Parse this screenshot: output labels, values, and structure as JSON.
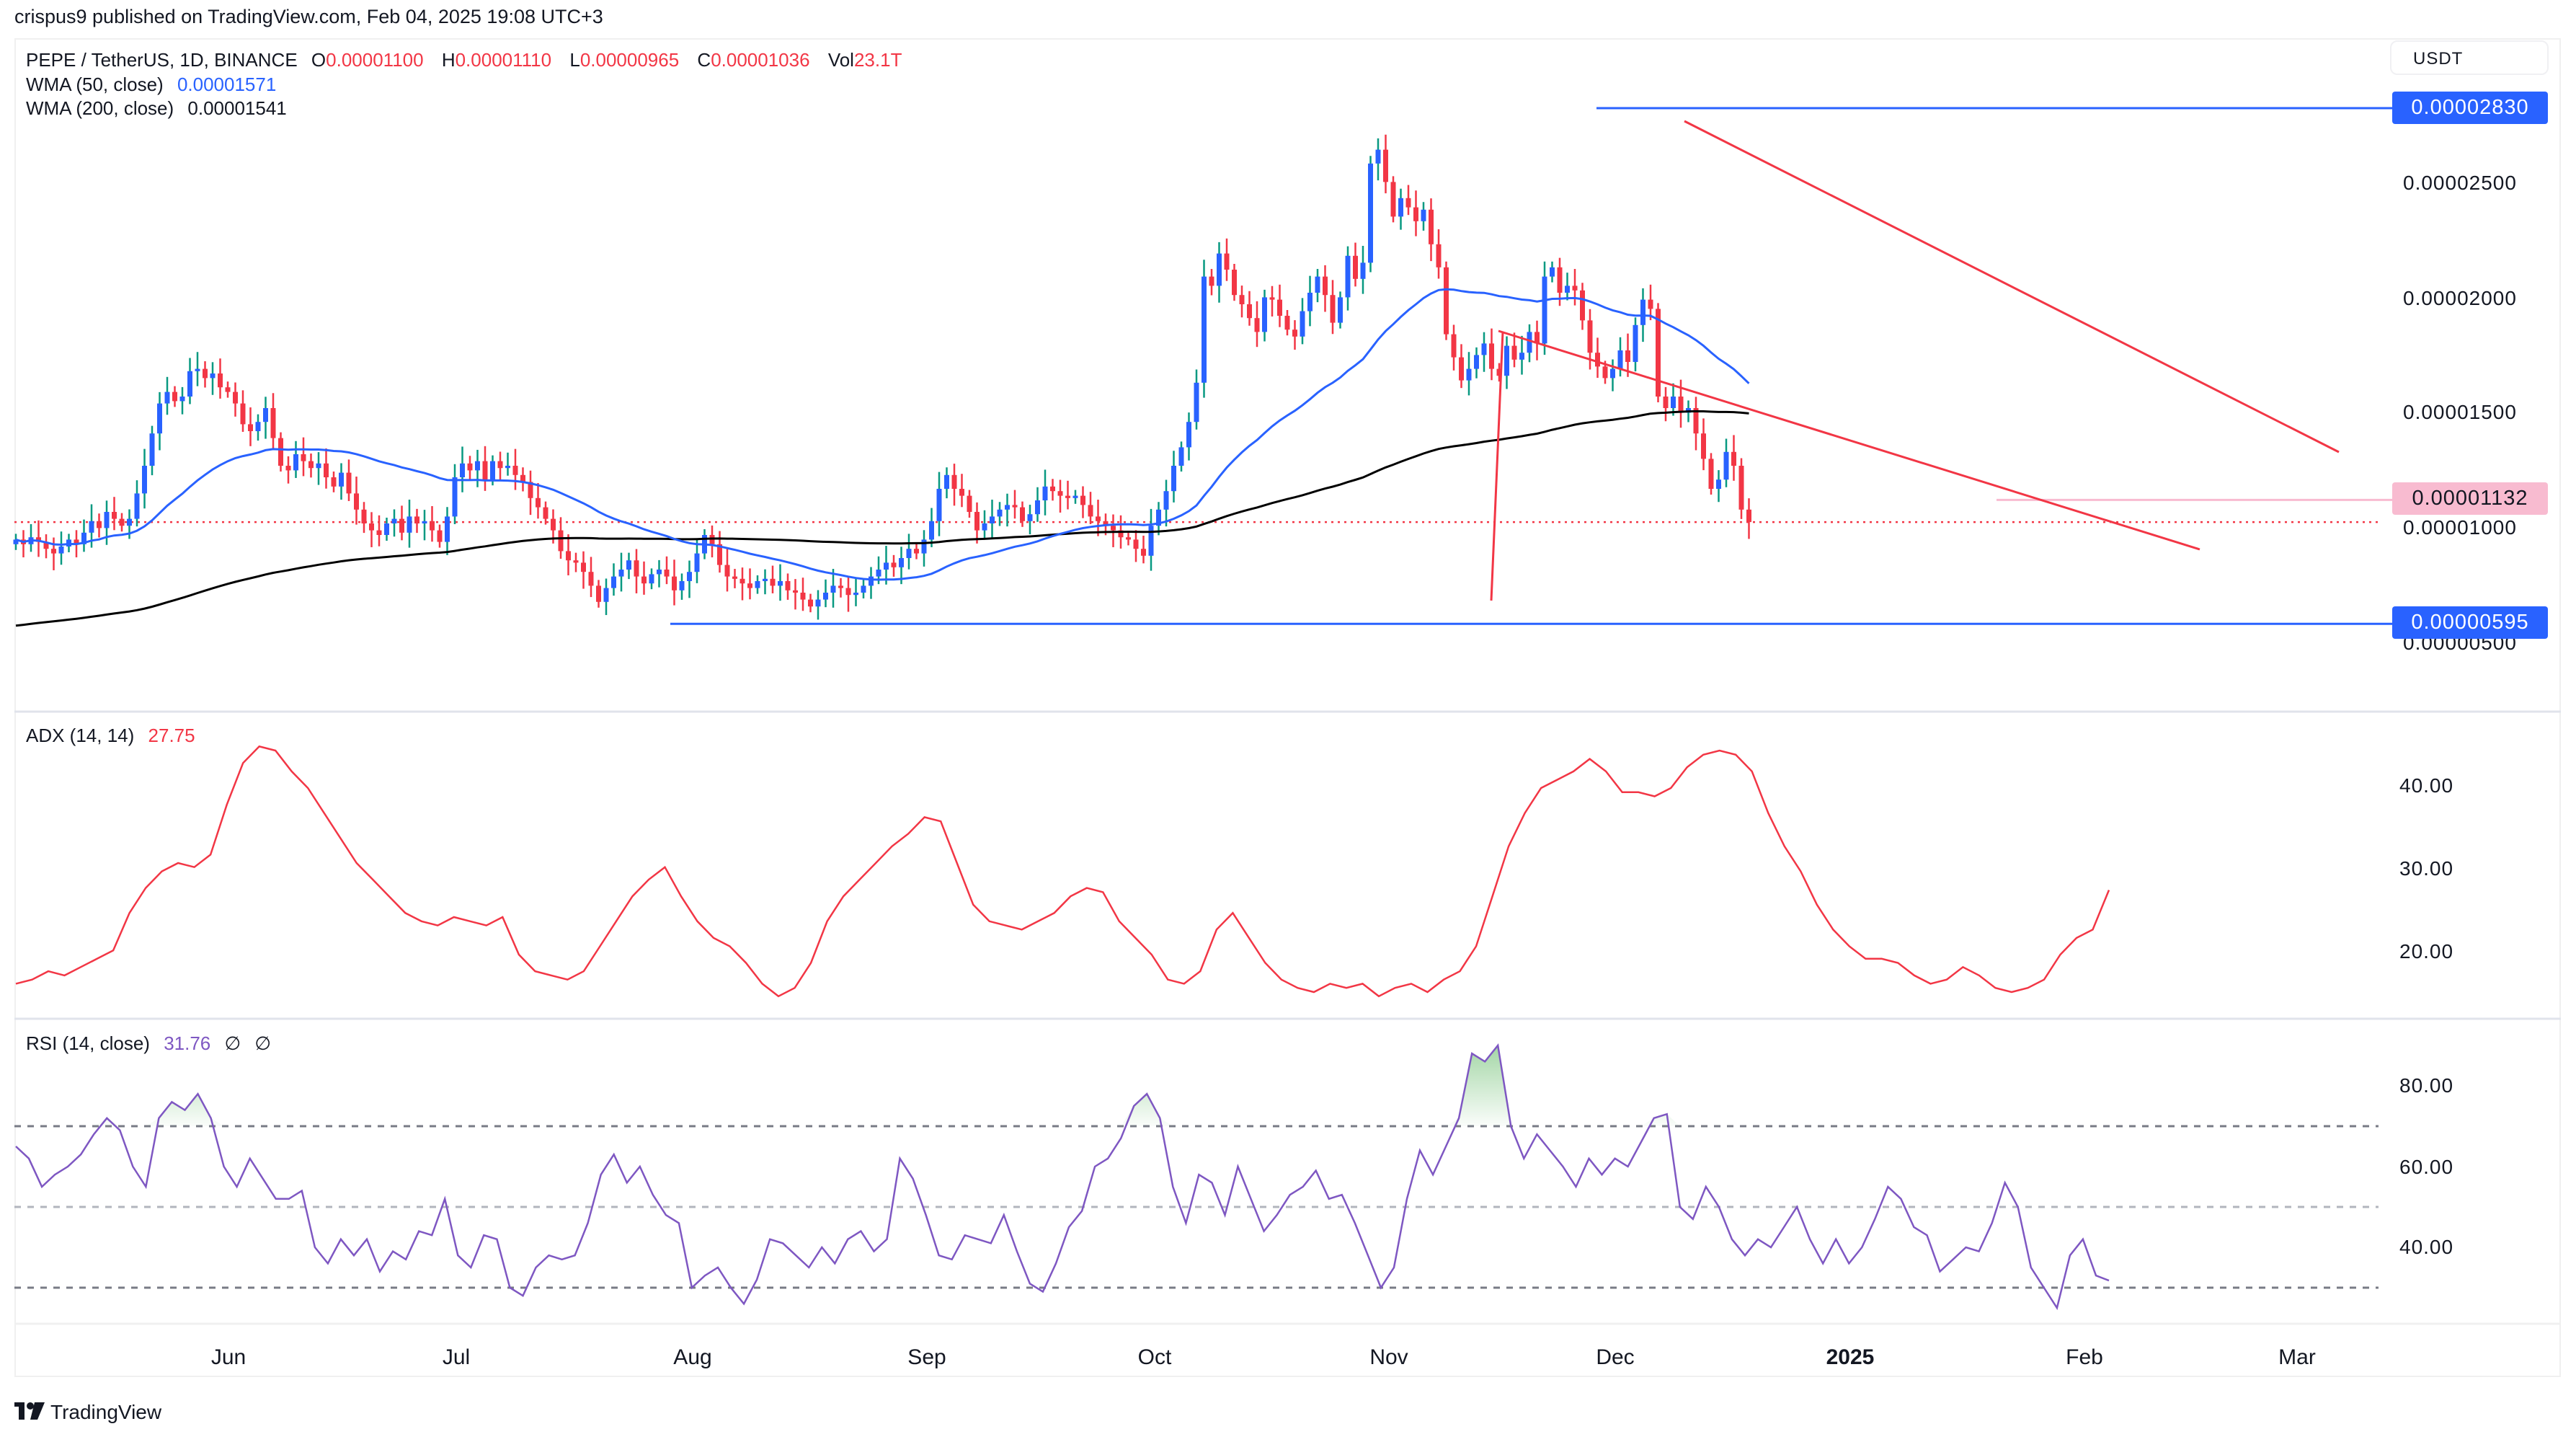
{
  "header": {
    "published_by": "crispus9 published on TradingView.com, Feb 04, 2025 19:08 UTC+3"
  },
  "legend": {
    "symbol": "PEPE / TetherUS, 1D, BINANCE",
    "open_label": "O",
    "open": "0.00001100",
    "high_label": "H",
    "high": "0.00001110",
    "low_label": "L",
    "low": "0.00000965",
    "close_label": "C",
    "close": "0.00001036",
    "vol_label": "Vol",
    "vol": "23.1T",
    "wma50_label": "WMA (50, close)",
    "wma50": "0.00001571",
    "wma200_label": "WMA (200, close)",
    "wma200": "0.00001541",
    "adx_label": "ADX (14, 14)",
    "adx": "27.75",
    "rsi_label": "RSI (14, close)",
    "rsi": "31.76",
    "rsi_na1": "∅",
    "rsi_na2": "∅"
  },
  "price_axis": {
    "currency": "USDT",
    "ticks": [
      "0.00002500",
      "0.00002000",
      "0.00001500",
      "0.00001000",
      "0.00000500"
    ],
    "tags": [
      {
        "value": "0.00002830",
        "kind": "resistance",
        "color": "#2962ff"
      },
      {
        "value": "0.00001132",
        "kind": "alert",
        "color": "#f8bbd0"
      },
      {
        "value": "0.00000595",
        "kind": "support",
        "color": "#2962ff"
      }
    ]
  },
  "adx_axis": {
    "ticks": [
      "40.00",
      "30.00",
      "20.00"
    ]
  },
  "rsi_axis": {
    "ticks": [
      "80.00",
      "60.00",
      "40.00"
    ]
  },
  "time_axis": {
    "labels": [
      "Jun",
      "Jul",
      "Aug",
      "Sep",
      "Oct",
      "Nov",
      "Dec",
      "2025",
      "Feb",
      "Mar"
    ]
  },
  "footer": {
    "brand": "TradingView",
    "logo_icon": "tradingview-logo-icon"
  },
  "colors": {
    "up": "#2962ff",
    "up_wick": "#089981",
    "down": "#f23645",
    "wma50": "#2962ff",
    "wma200": "#000000",
    "adx": "#f23645",
    "rsi": "#7e57c2",
    "trendline": "#f23645",
    "hline": "#2962ff",
    "alert_line": "#f8bbd0"
  },
  "chart_data": [
    {
      "type": "candlestick",
      "title": "PEPE / TetherUS, 1D, BINANCE",
      "ylabel": "USDT",
      "unit": "price in 1e-6 USDT",
      "ylim": [
        3.0,
        29.5
      ],
      "x_labels": [
        "Jun",
        "Jul",
        "Aug",
        "Sep",
        "Oct",
        "Nov",
        "Dec",
        "2025",
        "Feb",
        "Mar"
      ],
      "close_series_approx": [
        9.6,
        9.4,
        9.7,
        9.5,
        9.2,
        9.0,
        9.3,
        9.6,
        9.4,
        9.9,
        10.4,
        10.1,
        10.8,
        10.5,
        10.2,
        10.5,
        11.6,
        12.8,
        14.2,
        15.5,
        16.0,
        15.6,
        15.8,
        16.9,
        17.0,
        16.6,
        16.8,
        16.2,
        16.0,
        15.5,
        14.6,
        14.3,
        14.7,
        15.3,
        14.0,
        12.8,
        12.6,
        13.3,
        13.0,
        12.7,
        12.9,
        12.3,
        11.9,
        12.5,
        11.6,
        10.9,
        10.3,
        10.0,
        9.8,
        10.3,
        10.5,
        9.9,
        10.6,
        10.3,
        10.4,
        10.0,
        9.5,
        10.6,
        12.3,
        12.9,
        12.6,
        13.0,
        12.2,
        13.0,
        12.7,
        12.8,
        12.4,
        12.1,
        11.4,
        11.0,
        10.5,
        10.0,
        9.1,
        8.7,
        8.6,
        8.2,
        7.6,
        6.9,
        7.5,
        8.0,
        8.3,
        8.7,
        8.0,
        7.7,
        8.1,
        8.3,
        8.0,
        7.4,
        7.8,
        8.2,
        9.0,
        9.8,
        9.4,
        8.5,
        8.0,
        7.9,
        7.7,
        7.5,
        7.8,
        7.9,
        7.6,
        7.8,
        7.4,
        7.3,
        7.0,
        6.7,
        7.0,
        7.3,
        7.6,
        7.5,
        7.2,
        7.3,
        7.6,
        8.0,
        8.3,
        8.6,
        8.4,
        8.8,
        9.2,
        9.0,
        9.6,
        10.4,
        11.8,
        12.4,
        11.8,
        11.5,
        10.8,
        10.0,
        10.3,
        10.6,
        10.9,
        11.1,
        11.0,
        10.4,
        10.7,
        11.3,
        11.9,
        11.7,
        11.5,
        11.4,
        11.5,
        11.1,
        10.6,
        10.4,
        10.2,
        10.0,
        9.7,
        9.6,
        9.2,
        8.9,
        10.2,
        10.9,
        11.7,
        12.8,
        13.6,
        14.7,
        16.4,
        21.0,
        20.6,
        22.0,
        21.3,
        20.2,
        19.8,
        19.2,
        18.6,
        20.1,
        20.0,
        19.3,
        18.7,
        18.4,
        19.5,
        20.3,
        21.0,
        20.2,
        19.0,
        20.1,
        21.9,
        20.9,
        21.6,
        25.9,
        26.5,
        25.1,
        23.6,
        24.4,
        24.0,
        23.4,
        23.9,
        22.4,
        21.4,
        18.5,
        17.5,
        16.5,
        17.0,
        17.6,
        18.1,
        17.0,
        16.7,
        18.0,
        17.4,
        17.7,
        18.6,
        18.1,
        21.0,
        21.4,
        20.3,
        20.6,
        20.4,
        19.1,
        17.7,
        17.1,
        16.6,
        17.0,
        17.8,
        17.3,
        18.9,
        20.0,
        19.6,
        15.8,
        15.3,
        15.8,
        15.1,
        15.3,
        14.2,
        13.1,
        11.8,
        12.2,
        13.4,
        12.8,
        10.9,
        10.36
      ]
    },
    {
      "type": "line",
      "title": "ADX (14, 14)",
      "ylim": [
        12,
        48
      ],
      "yticks": [
        20,
        30,
        40
      ],
      "last_value": 27.75,
      "values_approx": [
        16.5,
        17,
        18,
        17.5,
        18.5,
        19.5,
        20.5,
        25,
        28,
        30,
        31,
        30.5,
        32,
        38,
        43,
        45,
        44.5,
        42,
        40,
        37,
        34,
        31,
        29,
        27,
        25,
        24,
        23.5,
        24.5,
        24,
        23.5,
        24.5,
        20,
        18,
        17.5,
        17,
        18,
        21,
        24,
        27,
        29,
        30.5,
        27,
        24,
        22,
        21,
        19,
        16.5,
        15,
        16,
        19,
        24,
        27,
        29,
        31,
        33,
        34.5,
        36.5,
        36,
        31,
        26,
        24,
        23.5,
        23,
        24,
        25,
        27,
        28,
        27.5,
        24,
        22,
        20,
        17,
        16.5,
        18,
        23,
        25,
        22,
        19,
        17,
        16,
        15.5,
        16.5,
        16,
        16.5,
        15,
        16,
        16.5,
        15.5,
        17,
        18,
        21,
        27,
        33,
        37,
        40,
        41,
        42,
        43.5,
        42,
        39.5,
        39.5,
        39,
        40,
        42.5,
        44,
        44.5,
        44,
        42,
        37,
        33,
        30,
        26,
        23,
        21,
        19.5,
        19.5,
        19,
        17.5,
        16.5,
        17,
        18.5,
        17.5,
        16,
        15.5,
        16,
        17,
        20,
        22,
        23,
        27.75
      ]
    },
    {
      "type": "line",
      "title": "RSI (14, close)",
      "ylim": [
        22,
        96
      ],
      "yticks": [
        40,
        60,
        80
      ],
      "bands": {
        "upper": 70,
        "middle": 50,
        "lower": 30
      },
      "last_value": 31.76,
      "values_approx": [
        65,
        62,
        55,
        58,
        60,
        63,
        68,
        72,
        69,
        60,
        55,
        72,
        76,
        74,
        78,
        72,
        60,
        55,
        62,
        57,
        52,
        52,
        54,
        40,
        36,
        42,
        38,
        42,
        34,
        39,
        37,
        44,
        43,
        52,
        38,
        35,
        43,
        42,
        30,
        28,
        35,
        38,
        37,
        38,
        46,
        58,
        63,
        56,
        60,
        53,
        48,
        46,
        30,
        33,
        35,
        30,
        26,
        32,
        42,
        41,
        38,
        35,
        40,
        36,
        42,
        44,
        39,
        42,
        62,
        57,
        48,
        38,
        37,
        43,
        42,
        41,
        48,
        39,
        31,
        29,
        36,
        45,
        49,
        60,
        62,
        67,
        75,
        78,
        72,
        55,
        46,
        58,
        56,
        48,
        60,
        52,
        44,
        48,
        53,
        55,
        59,
        52,
        53,
        46,
        38,
        30,
        35,
        52,
        64,
        58,
        65,
        72,
        88,
        86,
        90,
        70,
        62,
        68,
        64,
        60,
        55,
        62,
        58,
        62,
        60,
        66,
        72,
        73,
        50,
        47,
        55,
        50,
        42,
        38,
        42,
        40,
        45,
        50,
        42,
        36,
        42,
        36,
        40,
        47,
        55,
        52,
        45,
        43,
        34,
        37,
        40,
        39,
        46,
        56,
        50,
        35,
        30,
        25,
        38,
        42,
        33,
        31.76
      ]
    }
  ]
}
